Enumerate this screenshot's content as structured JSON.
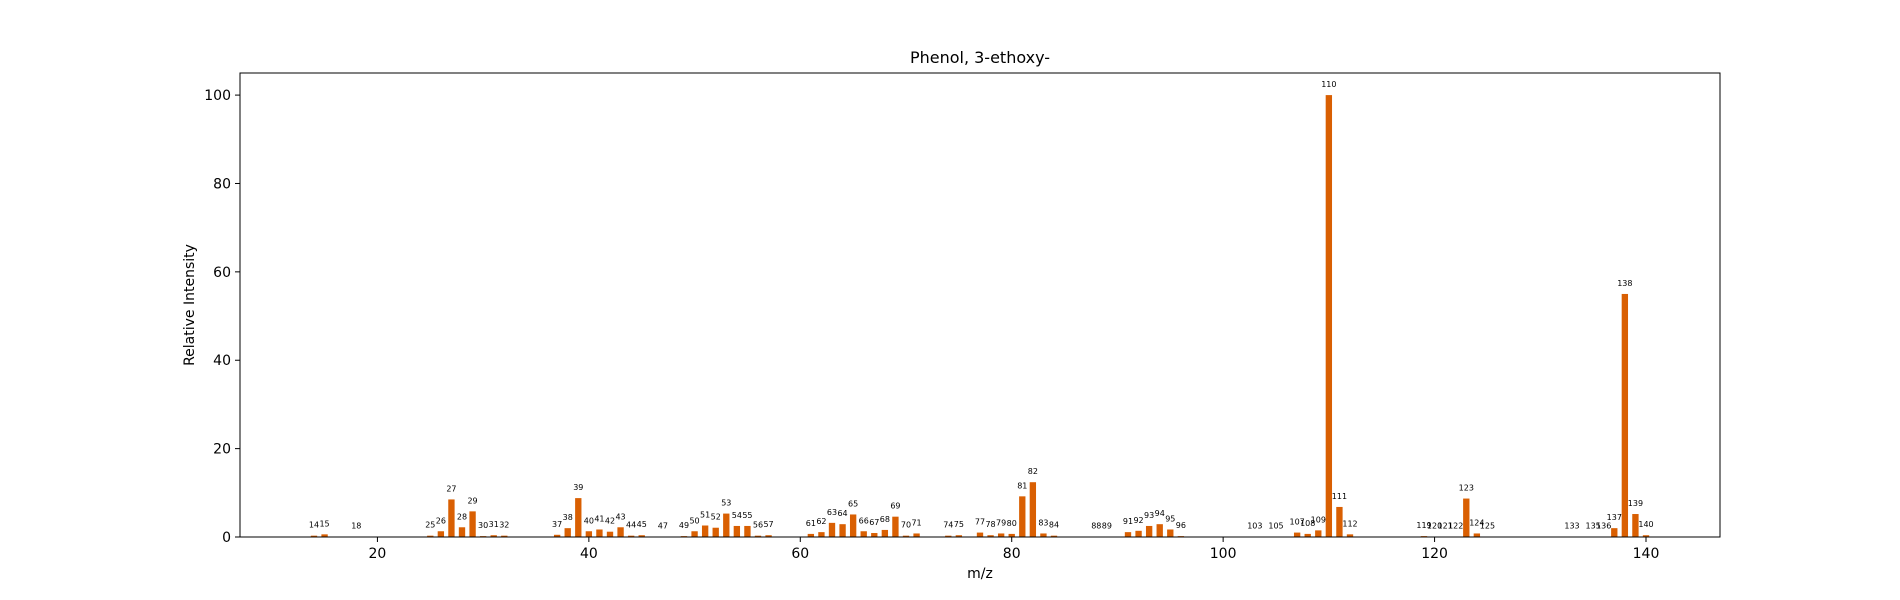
{
  "chart_data": {
    "type": "bar",
    "title": "Phenol, 3-ethoxy-",
    "xlabel": "m/z",
    "ylabel": "Relative Intensity",
    "xlim": [
      7,
      147
    ],
    "ylim": [
      0,
      105
    ],
    "xticks": [
      20,
      40,
      60,
      80,
      100,
      120,
      140
    ],
    "yticks": [
      0,
      20,
      40,
      60,
      80,
      100
    ],
    "bar_color": "#d95f02",
    "grid": false,
    "peaks": [
      {
        "mz": 14,
        "intensity": 0.3
      },
      {
        "mz": 15,
        "intensity": 0.6
      },
      {
        "mz": 18,
        "intensity": 0.1
      },
      {
        "mz": 25,
        "intensity": 0.3
      },
      {
        "mz": 26,
        "intensity": 1.3
      },
      {
        "mz": 27,
        "intensity": 8.5
      },
      {
        "mz": 28,
        "intensity": 2.2
      },
      {
        "mz": 29,
        "intensity": 5.8
      },
      {
        "mz": 30,
        "intensity": 0.2
      },
      {
        "mz": 31,
        "intensity": 0.4
      },
      {
        "mz": 32,
        "intensity": 0.3
      },
      {
        "mz": 37,
        "intensity": 0.5
      },
      {
        "mz": 38,
        "intensity": 2.0
      },
      {
        "mz": 39,
        "intensity": 8.8
      },
      {
        "mz": 40,
        "intensity": 1.3
      },
      {
        "mz": 41,
        "intensity": 1.7
      },
      {
        "mz": 42,
        "intensity": 1.2
      },
      {
        "mz": 43,
        "intensity": 2.2
      },
      {
        "mz": 44,
        "intensity": 0.3
      },
      {
        "mz": 45,
        "intensity": 0.4
      },
      {
        "mz": 47,
        "intensity": 0.1
      },
      {
        "mz": 49,
        "intensity": 0.2
      },
      {
        "mz": 50,
        "intensity": 1.3
      },
      {
        "mz": 51,
        "intensity": 2.6
      },
      {
        "mz": 52,
        "intensity": 2.1
      },
      {
        "mz": 53,
        "intensity": 5.3
      },
      {
        "mz": 54,
        "intensity": 2.5
      },
      {
        "mz": 55,
        "intensity": 2.5
      },
      {
        "mz": 56,
        "intensity": 0.3
      },
      {
        "mz": 57,
        "intensity": 0.4
      },
      {
        "mz": 61,
        "intensity": 0.7
      },
      {
        "mz": 62,
        "intensity": 1.1
      },
      {
        "mz": 63,
        "intensity": 3.2
      },
      {
        "mz": 64,
        "intensity": 2.9
      },
      {
        "mz": 65,
        "intensity": 5.1
      },
      {
        "mz": 66,
        "intensity": 1.3
      },
      {
        "mz": 67,
        "intensity": 0.9
      },
      {
        "mz": 68,
        "intensity": 1.6
      },
      {
        "mz": 69,
        "intensity": 4.6
      },
      {
        "mz": 70,
        "intensity": 0.3
      },
      {
        "mz": 71,
        "intensity": 0.8
      },
      {
        "mz": 74,
        "intensity": 0.3
      },
      {
        "mz": 75,
        "intensity": 0.4
      },
      {
        "mz": 77,
        "intensity": 1.0
      },
      {
        "mz": 78,
        "intensity": 0.4
      },
      {
        "mz": 79,
        "intensity": 0.8
      },
      {
        "mz": 80,
        "intensity": 0.7
      },
      {
        "mz": 81,
        "intensity": 9.2
      },
      {
        "mz": 82,
        "intensity": 12.4
      },
      {
        "mz": 83,
        "intensity": 0.8
      },
      {
        "mz": 84,
        "intensity": 0.3
      },
      {
        "mz": 88,
        "intensity": 0.1
      },
      {
        "mz": 89,
        "intensity": 0.1
      },
      {
        "mz": 91,
        "intensity": 1.1
      },
      {
        "mz": 92,
        "intensity": 1.4
      },
      {
        "mz": 93,
        "intensity": 2.5
      },
      {
        "mz": 94,
        "intensity": 2.9
      },
      {
        "mz": 95,
        "intensity": 1.7
      },
      {
        "mz": 96,
        "intensity": 0.2
      },
      {
        "mz": 103,
        "intensity": 0.1
      },
      {
        "mz": 105,
        "intensity": 0.1
      },
      {
        "mz": 107,
        "intensity": 1.0
      },
      {
        "mz": 108,
        "intensity": 0.7
      },
      {
        "mz": 109,
        "intensity": 1.5
      },
      {
        "mz": 110,
        "intensity": 100
      },
      {
        "mz": 111,
        "intensity": 6.8
      },
      {
        "mz": 112,
        "intensity": 0.6
      },
      {
        "mz": 119,
        "intensity": 0.2
      },
      {
        "mz": 120,
        "intensity": 0.1
      },
      {
        "mz": 121,
        "intensity": 0.1
      },
      {
        "mz": 122,
        "intensity": 0.1
      },
      {
        "mz": 123,
        "intensity": 8.7
      },
      {
        "mz": 124,
        "intensity": 0.8
      },
      {
        "mz": 125,
        "intensity": 0.1
      },
      {
        "mz": 133,
        "intensity": 0.1
      },
      {
        "mz": 135,
        "intensity": 0.1
      },
      {
        "mz": 136,
        "intensity": 0.1
      },
      {
        "mz": 137,
        "intensity": 2.0
      },
      {
        "mz": 138,
        "intensity": 55.0
      },
      {
        "mz": 139,
        "intensity": 5.2
      },
      {
        "mz": 140,
        "intensity": 0.4
      }
    ]
  }
}
